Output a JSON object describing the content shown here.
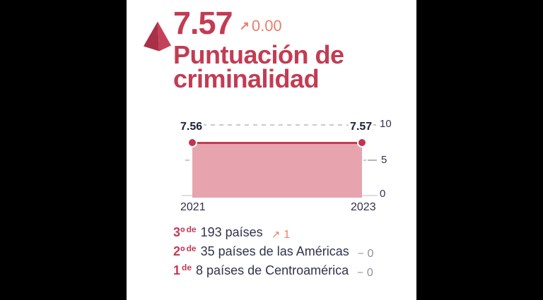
{
  "colors": {
    "background": "#000000",
    "panel": "#ffffff",
    "accent_crimson": "#c23c53",
    "pyramid_dark_face": "#a93048",
    "pyramid_light_face": "#c5415a",
    "change_up": "#e87f6c",
    "change_neutral": "#8e8e9a",
    "area_fill": "#e7a4af",
    "text_dark": "#32324e",
    "gridline": "#c9c9cf"
  },
  "header": {
    "score": "7.57",
    "change_icon": "↗",
    "change_value": "0.00",
    "title_lines": [
      "Puntuación de",
      "criminalidad"
    ]
  },
  "chart_data": {
    "type": "area",
    "title": "Puntuación de criminalidad",
    "x": [
      "2021",
      "2023"
    ],
    "series": [
      {
        "name": "Puntuación de criminalidad",
        "values": [
          7.56,
          7.57
        ]
      }
    ],
    "point_labels": [
      "7.56",
      "7.57"
    ],
    "ylim": [
      0,
      10
    ],
    "yticks": [
      0,
      5,
      10
    ],
    "grid": "horizontal dashed at 5 and 10",
    "legend": "none"
  },
  "rankings": [
    {
      "rank": "3º",
      "sup": "de",
      "text": "193 países",
      "change_icon": "↗",
      "change_value": "1",
      "direction": "up"
    },
    {
      "rank": "2º",
      "sup": "de",
      "text": "35 países de las Américas",
      "change_icon": "−",
      "change_value": "0",
      "direction": "none"
    },
    {
      "rank": "1",
      "sup": "de",
      "text": "8 países de Centroamérica",
      "change_icon": "−",
      "change_value": "0",
      "direction": "none"
    }
  ]
}
